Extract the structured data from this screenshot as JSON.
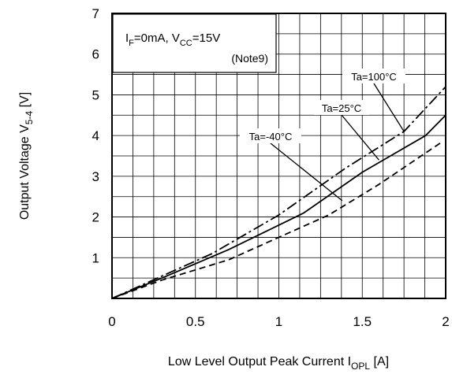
{
  "chart_data": {
    "type": "line",
    "xlabel": {
      "main": "Low Level Output Peak Current I",
      "sub": "OPL",
      "unit": " [A]"
    },
    "ylabel": {
      "main": "Output Voltage V",
      "sub": "5-4",
      "unit": " [V]"
    },
    "xlim": [
      0,
      2
    ],
    "ylim": [
      0,
      7
    ],
    "x_ticks": [
      "0",
      "0.5",
      "1",
      "1.5",
      "2"
    ],
    "y_ticks": [
      "1",
      "2",
      "3",
      "4",
      "5",
      "6",
      "7"
    ],
    "grid": true,
    "conditions": {
      "line1_p1": "I",
      "line1_s1": "F",
      "line1_p2": "=0mA, V",
      "line1_s2": "CC",
      "line1_p3": "=15V",
      "line2": "(Note9)"
    },
    "series": [
      {
        "name": "Ta=100°C",
        "style": "dashdot",
        "x": [
          0,
          0.3,
          0.6,
          1.0,
          1.4,
          1.75,
          2.0
        ],
        "y": [
          0,
          0.55,
          1.1,
          2.05,
          3.2,
          4.1,
          5.2
        ]
      },
      {
        "name": "Ta=25°C",
        "style": "solid",
        "x": [
          0,
          0.3,
          0.7,
          1.15,
          1.5,
          1.88,
          2.0
        ],
        "y": [
          0,
          0.5,
          1.2,
          2.1,
          3.1,
          4.0,
          4.5
        ]
      },
      {
        "name": "Ta=-40°C",
        "style": "dashed",
        "x": [
          0,
          0.3,
          0.7,
          1.0,
          1.3,
          1.6,
          1.98
        ],
        "y": [
          0,
          0.45,
          0.95,
          1.5,
          2.05,
          2.8,
          3.85
        ]
      }
    ],
    "annotations": [
      {
        "label": "Ta=100°C",
        "anchor": [
          1.75,
          4.1
        ]
      },
      {
        "label": "Ta=25°C",
        "anchor": [
          1.6,
          3.4
        ]
      },
      {
        "label": "Ta=-40°C",
        "anchor": [
          1.38,
          2.4
        ]
      }
    ]
  }
}
